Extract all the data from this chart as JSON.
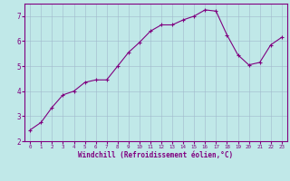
{
  "x": [
    0,
    1,
    2,
    3,
    4,
    5,
    6,
    7,
    8,
    9,
    10,
    11,
    12,
    13,
    14,
    15,
    16,
    17,
    18,
    19,
    20,
    21,
    22,
    23
  ],
  "y": [
    2.45,
    2.75,
    3.35,
    3.85,
    4.0,
    4.35,
    4.45,
    4.45,
    5.0,
    5.55,
    5.95,
    6.4,
    6.65,
    6.65,
    6.85,
    7.0,
    7.25,
    7.2,
    6.25,
    5.45,
    5.05,
    5.15,
    5.85,
    6.15
  ],
  "line_color": "#800080",
  "marker": "+",
  "bg_color": "#c0e8e8",
  "grid_color": "#a0b8cc",
  "xlabel": "Windchill (Refroidissement éolien,°C)",
  "xlabel_color": "#800080",
  "tick_color": "#800080",
  "axis_color": "#800080",
  "ylim": [
    2,
    7.5
  ],
  "xlim": [
    -0.5,
    23.5
  ],
  "yticks": [
    2,
    3,
    4,
    5,
    6,
    7
  ],
  "xticks": [
    0,
    1,
    2,
    3,
    4,
    5,
    6,
    7,
    8,
    9,
    10,
    11,
    12,
    13,
    14,
    15,
    16,
    17,
    18,
    19,
    20,
    21,
    22,
    23
  ]
}
